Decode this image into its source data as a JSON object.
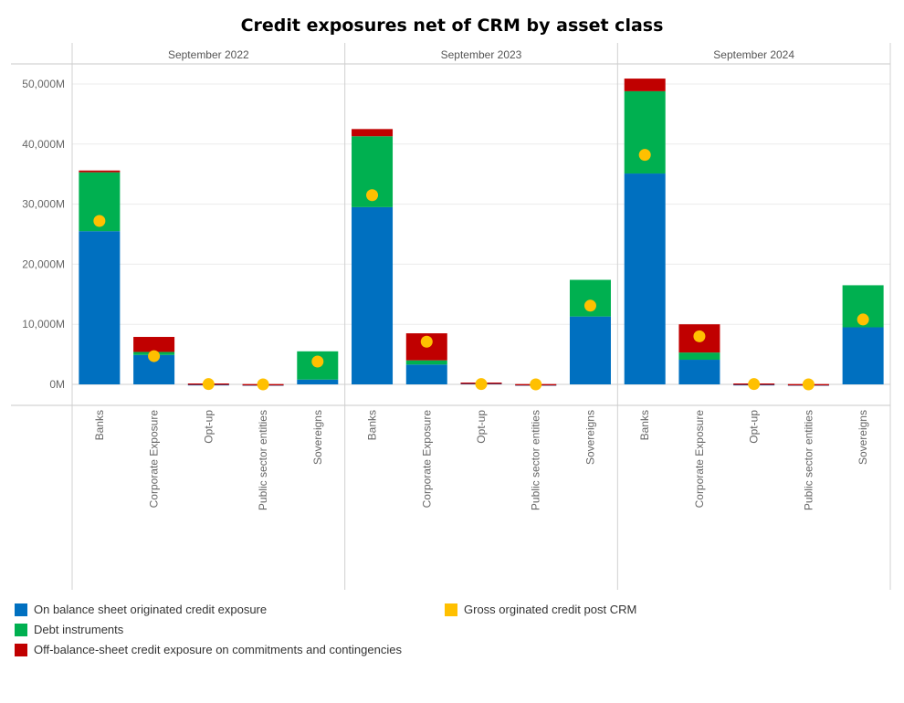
{
  "chart_data": {
    "type": "bar",
    "stacked": true,
    "title": "Credit exposures net of CRM by asset class",
    "panels": [
      "September 2022",
      "September 2023",
      "September 2024"
    ],
    "categories": [
      "Banks",
      "Corporate Exposure",
      "Opt-up",
      "Public sector entities",
      "Sovereigns"
    ],
    "y_ticks": [
      "0M",
      "10,000M",
      "20,000M",
      "30,000M",
      "40,000M",
      "50,000M"
    ],
    "ylim": [
      -3500,
      53000
    ],
    "grid": true,
    "legend_position": "bottom",
    "series": [
      {
        "name": "On balance sheet originated credit exposure",
        "color": "#0070C0",
        "mark": "bar",
        "values": [
          [
            25500,
            4900,
            50,
            -100,
            800
          ],
          [
            29500,
            3300,
            250,
            -100,
            11300
          ],
          [
            35100,
            4100,
            50,
            -100,
            9500
          ]
        ]
      },
      {
        "name": "Debt instruments",
        "color": "#00B050",
        "mark": "bar",
        "values": [
          [
            9800,
            500,
            0,
            0,
            4700
          ],
          [
            11800,
            700,
            0,
            0,
            6100
          ],
          [
            13700,
            1200,
            0,
            0,
            7000
          ]
        ]
      },
      {
        "name": "Off-balance-sheet credit exposure on commitments and contingencies",
        "color": "#C00000",
        "mark": "bar",
        "values": [
          [
            300,
            2500,
            100,
            50,
            0
          ],
          [
            1200,
            4500,
            50,
            50,
            0
          ],
          [
            2100,
            4700,
            100,
            50,
            0
          ]
        ]
      },
      {
        "name": "Gross orginated credit post CRM",
        "color": "#FFC000",
        "mark": "point",
        "values": [
          [
            27200,
            4700,
            50,
            0,
            3800
          ],
          [
            31500,
            7100,
            50,
            0,
            13100
          ],
          [
            38200,
            8000,
            50,
            0,
            10800
          ]
        ]
      }
    ]
  }
}
